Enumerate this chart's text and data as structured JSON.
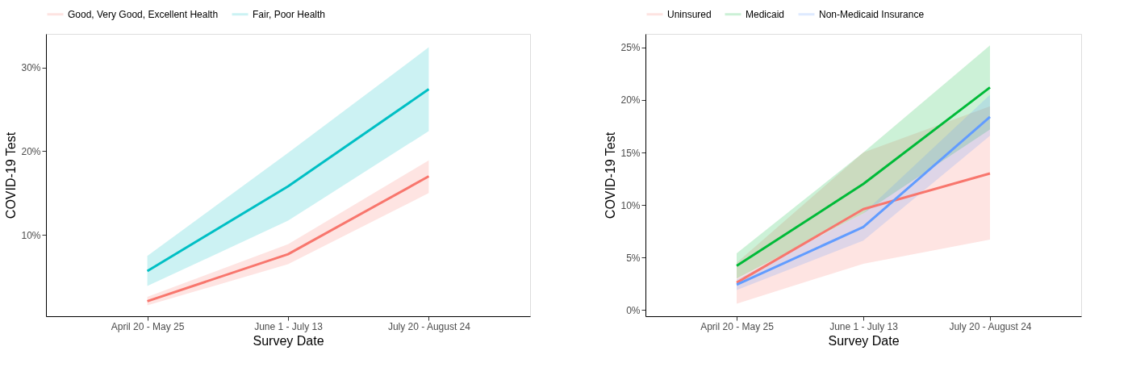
{
  "chart_data": [
    {
      "type": "line",
      "xlabel": "Survey Date",
      "ylabel": "COVID-19 Test",
      "legend": "top",
      "grid": false,
      "categories": [
        "April 20 - May 25",
        "June 1 - July 13",
        "July 20 - August 24"
      ],
      "ylim": [
        0.3,
        34
      ],
      "yticks": [
        {
          "value": 10,
          "label": "10%"
        },
        {
          "value": 20,
          "label": "20%"
        },
        {
          "value": 30,
          "label": "30%"
        }
      ],
      "series": [
        {
          "name": "Good, Very Good, Excellent Health",
          "color": "#f8766d",
          "values": [
            2.1,
            7.7,
            17.0
          ],
          "lower": [
            1.6,
            6.5,
            15.0
          ],
          "upper": [
            2.6,
            8.9,
            18.9
          ]
        },
        {
          "name": "Fair, Poor Health",
          "color": "#00bfc4",
          "values": [
            5.7,
            15.8,
            27.4
          ],
          "lower": [
            3.9,
            11.7,
            22.4
          ],
          "upper": [
            7.5,
            19.8,
            32.4
          ]
        }
      ]
    },
    {
      "type": "line",
      "xlabel": "Survey Date",
      "ylabel": "COVID-19 Test",
      "legend": "top",
      "grid": false,
      "categories": [
        "April 20 - May 25",
        "June 1 - July 13",
        "July 20 - August 24"
      ],
      "ylim": [
        -0.6,
        26.3
      ],
      "yticks": [
        {
          "value": 0,
          "label": "0%"
        },
        {
          "value": 5,
          "label": "5%"
        },
        {
          "value": 10,
          "label": "10%"
        },
        {
          "value": 15,
          "label": "15%"
        },
        {
          "value": 20,
          "label": "20%"
        },
        {
          "value": 25,
          "label": "25%"
        }
      ],
      "series": [
        {
          "name": "Uninsured",
          "color": "#f8766d",
          "values": [
            2.6,
            9.6,
            13.0
          ],
          "lower": [
            0.6,
            4.4,
            6.7
          ],
          "upper": [
            4.5,
            15.0,
            19.4
          ]
        },
        {
          "name": "Medicaid",
          "color": "#00ba38",
          "values": [
            4.2,
            12.0,
            21.2
          ],
          "lower": [
            3.0,
            9.2,
            17.2
          ],
          "upper": [
            5.4,
            15.0,
            25.2
          ]
        },
        {
          "name": "Non-Medicaid Insurance",
          "color": "#619cff",
          "values": [
            2.4,
            7.9,
            18.4
          ],
          "lower": [
            1.9,
            6.6,
            16.6
          ],
          "upper": [
            2.9,
            9.2,
            20.5
          ]
        }
      ]
    }
  ]
}
